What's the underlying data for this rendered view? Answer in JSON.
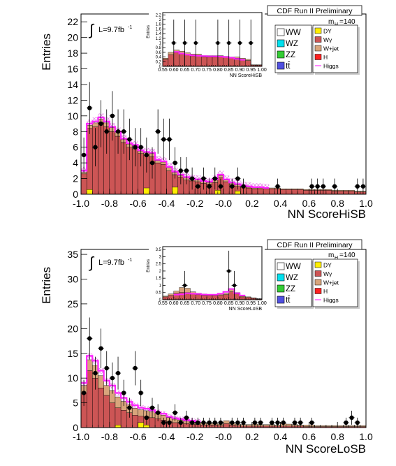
{
  "chart_data": [
    {
      "type": "histogram",
      "experiment_label": "CDF Run II Preliminary",
      "mass_label": "m",
      "mass_subscript": "H",
      "mass_value": "=140",
      "lumi_label": "L=9.7fb",
      "lumi_superscript": "-1",
      "integral_symbol": "∫",
      "xlabel": "NN ScoreHiSB",
      "ylabel": "Entries",
      "xlim": [
        -1.0,
        1.0
      ],
      "ylim": [
        0,
        23
      ],
      "x_ticks": [
        "-1.0",
        "-0.8",
        "-0.6",
        "-0.4",
        "-0.2",
        "-0.0",
        "0.2",
        "0.4",
        "0.6",
        "0.8",
        "1.0"
      ],
      "y_ticks": [
        "0",
        "2",
        "4",
        "6",
        "8",
        "10",
        "12",
        "14",
        "16",
        "18",
        "20",
        "22"
      ],
      "bin_width": 0.04,
      "bins_low": [
        -1.0,
        -0.96,
        -0.92,
        -0.88,
        -0.84,
        -0.8,
        -0.76,
        -0.72,
        -0.68,
        -0.64,
        -0.6,
        -0.56,
        -0.52,
        -0.48,
        -0.44,
        -0.4,
        -0.36,
        -0.32,
        -0.28,
        -0.24,
        -0.2,
        -0.16,
        -0.12,
        -0.08,
        -0.04,
        0.0,
        0.04,
        0.08,
        0.12,
        0.16,
        0.2,
        0.24,
        0.28,
        0.32,
        0.36,
        0.4,
        0.44,
        0.48,
        0.52,
        0.56,
        0.6,
        0.64,
        0.68,
        0.72,
        0.76,
        0.8,
        0.84,
        0.88,
        0.92,
        0.96
      ],
      "stack": {
        "wgamma": [
          2.6,
          8.4,
          8.6,
          9.2,
          8.6,
          8.0,
          7.4,
          6.6,
          6.0,
          5.8,
          5.2,
          5.0,
          4.8,
          4.0,
          3.8,
          3.0,
          2.5,
          2.2,
          1.8,
          1.7,
          1.6,
          1.4,
          1.3,
          1.5,
          2.1,
          1.6,
          1.2,
          1.0,
          0.9,
          0.8,
          0.7,
          0.7,
          0.7,
          0.7,
          0.7,
          0.6,
          0.6,
          0.6,
          0.6,
          0.5,
          0.5,
          0.5,
          0.5,
          0.5,
          0.4,
          0.4,
          0.4,
          0.4,
          0.3,
          0.3
        ],
        "wjet": [
          0.2,
          0.4,
          0.5,
          0.4,
          0.5,
          0.5,
          0.5,
          0.4,
          0.4,
          0.4,
          0.3,
          0.3,
          0.4,
          0.3,
          0.3,
          0.4,
          0.3,
          0.2,
          0.3,
          0.2,
          0.2,
          0.2,
          0.2,
          0.3,
          0.3,
          0.2,
          0.2,
          0.2,
          0.1,
          0.1,
          0.1,
          0.1,
          0.1,
          0.1,
          0.1,
          0.1,
          0.1,
          0.1,
          0.1,
          0.1,
          0.1,
          0.1,
          0.1,
          0.1,
          0.1,
          0.1,
          0.1,
          0.1,
          0.1,
          0.1
        ]
      },
      "dy_x": [
        -0.94,
        -0.54,
        -0.34,
        -0.04,
        0.1
      ],
      "dy_y": [
        0.6,
        0.8,
        0.9,
        0.5,
        0.4
      ],
      "higgs_x": [
        -0.98,
        -0.94,
        -0.9,
        -0.86,
        -0.82,
        -0.78,
        -0.74,
        -0.7,
        -0.66,
        -0.62,
        -0.58,
        -0.54,
        -0.5,
        -0.46,
        -0.42,
        -0.38,
        -0.34,
        -0.3,
        -0.26,
        -0.22,
        -0.18,
        -0.14,
        -0.1,
        -0.06,
        -0.02,
        0.02,
        0.06,
        0.1,
        0.14,
        0.18,
        0.22,
        0.26,
        0.3
      ],
      "higgs_y": [
        3.0,
        9.0,
        9.3,
        9.8,
        9.3,
        8.6,
        8.0,
        7.1,
        6.5,
        6.3,
        5.6,
        5.4,
        5.3,
        4.4,
        4.2,
        3.5,
        2.9,
        2.5,
        2.2,
        2.0,
        1.9,
        1.7,
        1.6,
        1.9,
        2.5,
        1.9,
        1.5,
        1.3,
        1.1,
        1.0,
        0.9,
        0.9,
        0.8
      ],
      "data_x": [
        -0.98,
        -0.94,
        -0.9,
        -0.86,
        -0.82,
        -0.78,
        -0.74,
        -0.7,
        -0.66,
        -0.62,
        -0.58,
        -0.54,
        -0.5,
        -0.46,
        -0.42,
        -0.38,
        -0.34,
        -0.3,
        -0.26,
        -0.22,
        -0.18,
        -0.14,
        -0.1,
        -0.06,
        -0.02,
        0.06,
        0.1,
        0.14,
        0.38,
        0.62,
        0.66,
        0.7,
        0.78,
        0.94,
        0.98
      ],
      "data_y": [
        5,
        11,
        6,
        9,
        8,
        10,
        8,
        8,
        7,
        6,
        6,
        5,
        4,
        8,
        7,
        7,
        4,
        3,
        3,
        2,
        1,
        2,
        1,
        2,
        1,
        1,
        2,
        1,
        1,
        1,
        1,
        1,
        1,
        1,
        1
      ],
      "inset": {
        "xlabel": "NN ScoreHiSB",
        "ylabel": "Entries",
        "xlim": [
          0.55,
          1.0
        ],
        "ylim": [
          0,
          2.3
        ],
        "x_ticks": [
          "0.55",
          "0.60",
          "0.65",
          "0.70",
          "0.75",
          "0.80",
          "0.85",
          "0.90",
          "0.95",
          "1.00"
        ],
        "y_ticks": [
          "0",
          "0.2",
          "0.4",
          "0.6",
          "0.8",
          "1",
          "1.2",
          "1.4",
          "1.6",
          "1.8",
          "2",
          "2.2"
        ],
        "bins_low": [
          0.55,
          0.575,
          0.6,
          0.625,
          0.65,
          0.675,
          0.7,
          0.725,
          0.75,
          0.775,
          0.8,
          0.825,
          0.85,
          0.875,
          0.9,
          0.925,
          0.95,
          0.975
        ],
        "wgamma": [
          0.3,
          0.5,
          0.6,
          0.55,
          0.5,
          0.45,
          0.45,
          0.4,
          0.4,
          0.4,
          0.4,
          0.38,
          0.35,
          0.35,
          0.3,
          0.25,
          0.05,
          0.05
        ],
        "wjet": [
          0.05,
          0.1,
          0.1,
          0.1,
          0.08,
          0.08,
          0.08,
          0.06,
          0.06,
          0.06,
          0.06,
          0.05,
          0.05,
          0.05,
          0.05,
          0.05,
          0.02,
          0.02
        ],
        "higgs_x": [
          0.612,
          0.637,
          0.662,
          0.687,
          0.712,
          0.737,
          0.762,
          0.787,
          0.812,
          0.837,
          0.862,
          0.887,
          0.912
        ],
        "higgs_y": [
          0.62,
          0.55,
          0.5,
          0.47,
          0.45,
          0.44,
          0.43,
          0.43,
          0.42,
          0.4,
          0.37,
          0.32,
          0.28
        ],
        "data_x": [
          0.6,
          0.65,
          0.7,
          0.8,
          0.85,
          0.9,
          0.95
        ],
        "data_y": [
          1,
          1,
          1,
          1,
          1,
          1,
          1
        ]
      }
    },
    {
      "type": "histogram",
      "experiment_label": "CDF Run II Preliminary",
      "mass_label": "m",
      "mass_subscript": "H",
      "mass_value": "=140",
      "lumi_label": "L=9.7fb",
      "lumi_superscript": "-1",
      "integral_symbol": "∫",
      "xlabel": "NN ScoreLoSB",
      "ylabel": "Entries",
      "xlim": [
        -1.0,
        1.0
      ],
      "ylim": [
        0,
        36
      ],
      "x_ticks": [
        "-1.0",
        "-0.8",
        "-0.6",
        "-0.4",
        "-0.2",
        "-0.0",
        "0.2",
        "0.4",
        "0.6",
        "0.8",
        "1.0"
      ],
      "y_ticks": [
        "0",
        "5",
        "10",
        "15",
        "20",
        "25",
        "30",
        "35"
      ],
      "bin_width": 0.04,
      "bins_low": [
        -1.0,
        -0.96,
        -0.92,
        -0.88,
        -0.84,
        -0.8,
        -0.76,
        -0.72,
        -0.68,
        -0.64,
        -0.6,
        -0.56,
        -0.52,
        -0.48,
        -0.44,
        -0.4,
        -0.36,
        -0.32,
        -0.28,
        -0.24,
        -0.2,
        -0.16,
        -0.12,
        -0.08,
        -0.04,
        0.0,
        0.04,
        0.08,
        0.12,
        0.16,
        0.2,
        0.24,
        0.28,
        0.32,
        0.36,
        0.4,
        0.44,
        0.48,
        0.52,
        0.56,
        0.6,
        0.64,
        0.68,
        0.72,
        0.76,
        0.8,
        0.84,
        0.88,
        0.92,
        0.96
      ],
      "stack": {
        "wgamma": [
          7.0,
          11.5,
          10.0,
          8.0,
          6.5,
          5.0,
          4.0,
          3.5,
          3.0,
          2.5,
          2.3,
          2.2,
          2.0,
          1.8,
          1.5,
          1.2,
          1.0,
          0.9,
          0.8,
          0.7,
          0.6,
          0.5,
          0.5,
          0.5,
          0.4,
          0.8,
          0.5,
          0.4,
          0.3,
          0.3,
          0.3,
          0.3,
          0.3,
          0.3,
          0.3,
          0.3,
          0.3,
          0.3,
          0.3,
          0.2,
          0.2,
          0.2,
          0.2,
          0.2,
          0.2,
          0.2,
          0.2,
          0.2,
          0.2,
          0.2
        ],
        "wjet": [
          1.5,
          2.2,
          2.6,
          2.5,
          2.0,
          2.5,
          2.2,
          1.8,
          1.6,
          1.4,
          1.3,
          1.2,
          1.2,
          1.1,
          1.0,
          0.8,
          0.7,
          0.6,
          0.5,
          0.5,
          0.4,
          0.4,
          0.3,
          0.3,
          0.3,
          0.6,
          0.4,
          0.3,
          0.3,
          0.3,
          0.4,
          0.3,
          0.3,
          0.3,
          0.2,
          0.5,
          0.4,
          0.3,
          0.2,
          0.3,
          0.3,
          0.2,
          0.2,
          0.2,
          0.2,
          0.2,
          0.2,
          0.2,
          0.2,
          0.2
        ]
      },
      "dy_x": [
        -0.74,
        -0.58,
        -0.54
      ],
      "dy_y": [
        0.5,
        1.0,
        0.5
      ],
      "higgs_x": [
        -0.98,
        -0.94,
        -0.9,
        -0.86,
        -0.82,
        -0.78,
        -0.74,
        -0.7,
        -0.66,
        -0.62,
        -0.58,
        -0.54,
        -0.5,
        -0.46,
        -0.42,
        -0.38,
        -0.34,
        -0.3,
        -0.26,
        -0.22,
        -0.18
      ],
      "higgs_y": [
        9.0,
        14.5,
        13.5,
        11.5,
        9.5,
        8.5,
        7.0,
        6.0,
        5.2,
        4.5,
        4.0,
        3.8,
        3.5,
        3.1,
        2.8,
        2.2,
        1.9,
        1.7,
        1.5,
        1.4,
        1.2
      ],
      "data_x": [
        -0.98,
        -0.94,
        -0.9,
        -0.86,
        -0.82,
        -0.78,
        -0.74,
        -0.7,
        -0.66,
        -0.62,
        -0.58,
        -0.54,
        -0.5,
        -0.46,
        -0.42,
        -0.38,
        -0.34,
        -0.3,
        -0.26,
        -0.22,
        -0.18,
        -0.14,
        -0.1,
        -0.06,
        -0.02,
        0.06,
        0.1,
        0.14,
        0.22,
        0.26,
        0.34,
        0.38,
        0.42,
        0.5,
        0.54,
        0.62,
        0.86,
        0.9,
        0.94
      ],
      "data_y": [
        7,
        18,
        11,
        16,
        12,
        10,
        11,
        7,
        4,
        12,
        7,
        2,
        4,
        3,
        1,
        1,
        3,
        1,
        2,
        1,
        1,
        1,
        1,
        1,
        1,
        1,
        1,
        1,
        1,
        1,
        1,
        1,
        1,
        1,
        1,
        1,
        1,
        2,
        1
      ],
      "inset": {
        "xlabel": "NN ScoreLoSB",
        "ylabel": "Entries",
        "xlim": [
          0.55,
          1.0
        ],
        "ylim": [
          0,
          3.7
        ],
        "x_ticks": [
          "0.55",
          "0.60",
          "0.65",
          "0.70",
          "0.75",
          "0.80",
          "0.85",
          "0.90",
          "0.95",
          "1.00"
        ],
        "y_ticks": [
          "0",
          "0.5",
          "1",
          "1.5",
          "2",
          "2.5",
          "3",
          "3.5"
        ],
        "bins_low": [
          0.55,
          0.575,
          0.6,
          0.625,
          0.65,
          0.675,
          0.7,
          0.725,
          0.75,
          0.775,
          0.8,
          0.825,
          0.85,
          0.875,
          0.9,
          0.925,
          0.95,
          0.975
        ],
        "wgamma": [
          0.2,
          0.3,
          0.45,
          0.5,
          0.5,
          0.4,
          0.35,
          0.3,
          0.3,
          0.3,
          0.3,
          0.35,
          0.55,
          0.4,
          0.2,
          0.15,
          0.1,
          0.05
        ],
        "wjet": [
          0.05,
          0.1,
          0.15,
          0.35,
          0.3,
          0.15,
          0.1,
          0.1,
          0.08,
          0.08,
          0.08,
          0.1,
          0.2,
          0.1,
          0.05,
          0.05,
          0.03,
          0.02
        ],
        "higgs_x": [
          0.612,
          0.637,
          0.662,
          0.687,
          0.712,
          0.737,
          0.762,
          0.787,
          0.812,
          0.837,
          0.862,
          0.887,
          0.912
        ],
        "higgs_y": [
          0.35,
          0.38,
          0.45,
          0.42,
          0.4,
          0.36,
          0.35,
          0.35,
          0.42,
          0.55,
          0.75,
          0.45,
          0.3
        ],
        "data_x": [
          0.65,
          0.85,
          0.875
        ],
        "data_y": [
          1,
          2,
          1
        ]
      }
    }
  ],
  "legend": {
    "left": [
      {
        "label": "WW",
        "color": "#ffffff"
      },
      {
        "label": "WZ",
        "color": "#00e0ee"
      },
      {
        "label": "ZZ",
        "color": "#33cc33"
      },
      {
        "label": "tt̄",
        "color": "#5050e0"
      }
    ],
    "right": [
      {
        "label": "DY",
        "color": "#ffee00"
      },
      {
        "label": "Wγ",
        "color": "#cc5555"
      },
      {
        "label": "W+jet",
        "color": "#d8a57c"
      },
      {
        "label": "H",
        "color": "#ff2020"
      },
      {
        "label": "Higgs",
        "color": "#ff44ff"
      }
    ]
  },
  "colors": {
    "wgamma": "#cc5555",
    "wjet": "#d8a57c",
    "dy": "#ffee00",
    "higgs": "#ff22ff",
    "data": "#000000",
    "band": "#e888e8"
  }
}
